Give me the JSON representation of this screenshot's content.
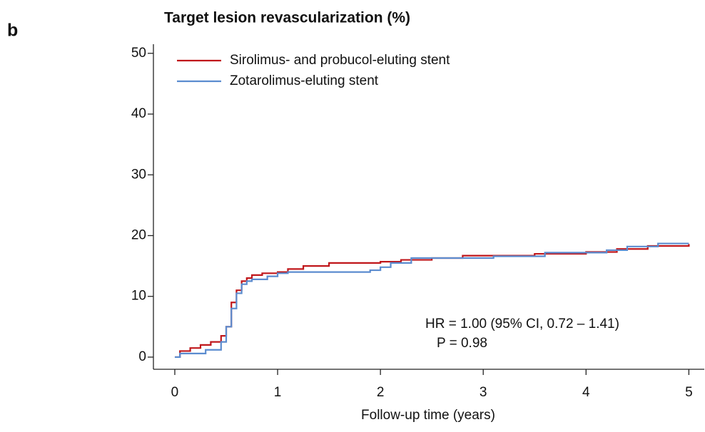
{
  "chart_data": {
    "type": "step",
    "panel_label": "b",
    "title": "Target lesion revascularization (%)",
    "x_label": "Follow-up time (years)",
    "annotations": [
      "HR = 1.00 (95% CI, 0.72 – 1.41)",
      "P = 0.98"
    ],
    "legend": "upper left",
    "xlim": [
      -0.208,
      5.15
    ],
    "ylim": [
      -2,
      51.5
    ],
    "xticks": [
      0,
      1,
      2,
      3,
      4,
      5
    ],
    "yticks": [
      0,
      10,
      20,
      30,
      40,
      50
    ],
    "series": [
      {
        "name": "Sirolimus- and probucol-eluting stent",
        "color": "#c0171b",
        "x": [
          0,
          0.05,
          0.15,
          0.25,
          0.35,
          0.45,
          0.5,
          0.55,
          0.6,
          0.65,
          0.7,
          0.75,
          0.85,
          1.0,
          1.1,
          1.25,
          1.5,
          2.0,
          2.2,
          2.5,
          2.8,
          3.5,
          4.0,
          4.3,
          4.6,
          5.0
        ],
        "values": [
          0,
          1,
          1.5,
          2,
          2.5,
          3.5,
          5,
          9,
          11,
          12.5,
          13,
          13.5,
          13.8,
          14,
          14.5,
          15,
          15.5,
          15.7,
          16,
          16.3,
          16.7,
          17,
          17.3,
          17.8,
          18.3,
          18.6
        ]
      },
      {
        "name": "Zotarolimus-eluting stent",
        "color": "#5b8ccf",
        "x": [
          0,
          0.05,
          0.3,
          0.45,
          0.5,
          0.55,
          0.6,
          0.65,
          0.7,
          0.75,
          0.9,
          1.0,
          1.1,
          1.5,
          1.9,
          2.0,
          2.1,
          2.3,
          3.1,
          3.6,
          4.2,
          4.4,
          4.7,
          5.0
        ],
        "values": [
          0,
          0.6,
          1.2,
          2.5,
          5,
          8,
          10.5,
          12,
          12.5,
          12.8,
          13.3,
          13.8,
          14,
          14,
          14.3,
          14.8,
          15.5,
          16.3,
          16.6,
          17.2,
          17.6,
          18.2,
          18.7,
          18.7
        ]
      }
    ]
  }
}
